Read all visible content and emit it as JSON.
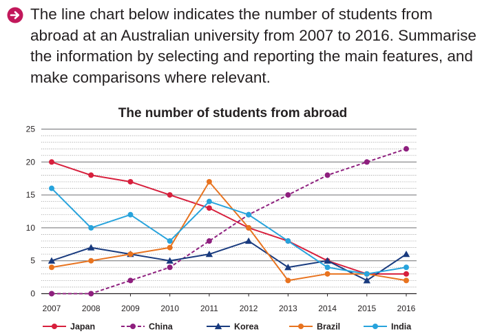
{
  "prompt": {
    "icon": "arrow-right-circle-icon",
    "icon_color": "#c2185b",
    "text": "The line chart below indicates the number of students from abroad at an Australian university from 2007 to 2016. Summarise the information by selecting and reporting the main features, and make comparisons where relevant."
  },
  "chart_data": {
    "type": "line",
    "title": "The number of students from abroad",
    "xlabel": "",
    "ylabel": "",
    "x": [
      "2007",
      "2008",
      "2009",
      "2010",
      "2011",
      "2012",
      "2013",
      "2014",
      "2015",
      "2016"
    ],
    "ylim": [
      0,
      25
    ],
    "yticks": [
      0,
      5,
      10,
      15,
      20,
      25
    ],
    "grid": true,
    "legend": "bottom",
    "series": [
      {
        "name": "Japan",
        "color": "#d71f3c",
        "marker": "circle",
        "dashed": false,
        "values": [
          20,
          18,
          17,
          15,
          13,
          10,
          8,
          5,
          3,
          3
        ]
      },
      {
        "name": "China",
        "color": "#8e1f7e",
        "marker": "circle",
        "dashed": true,
        "values": [
          0,
          0,
          2,
          4,
          8,
          12,
          15,
          18,
          20,
          22
        ]
      },
      {
        "name": "Korea",
        "color": "#183a7e",
        "marker": "triangle",
        "dashed": false,
        "values": [
          5,
          7,
          6,
          5,
          6,
          8,
          4,
          5,
          2,
          6
        ]
      },
      {
        "name": "Brazil",
        "color": "#e8731f",
        "marker": "circle",
        "dashed": false,
        "values": [
          4,
          5,
          6,
          7,
          17,
          10,
          2,
          3,
          3,
          2
        ]
      },
      {
        "name": "India",
        "color": "#27a3dc",
        "marker": "circle",
        "dashed": false,
        "values": [
          16,
          10,
          12,
          8,
          14,
          12,
          8,
          4,
          3,
          4
        ]
      }
    ]
  }
}
